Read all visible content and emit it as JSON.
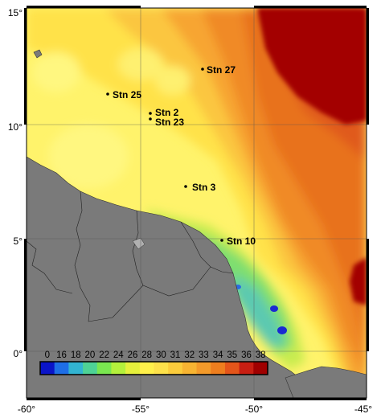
{
  "map": {
    "y_axis_labels": [
      "15°",
      "10°",
      "5°",
      "0°"
    ],
    "x_axis_labels": [
      "-60°",
      "-55°",
      "-50°",
      "-45°"
    ],
    "stations": [
      {
        "name": "Stn 27",
        "lon": -52.2,
        "lat": 12.4
      },
      {
        "name": "Stn 25",
        "lon": -56.5,
        "lat": 11.3
      },
      {
        "name": "Stn 2",
        "lon": -54.7,
        "lat": 10.5
      },
      {
        "name": "Stn 23",
        "lon": -54.7,
        "lat": 10.2
      },
      {
        "name": "Stn 3",
        "lon": -53.0,
        "lat": 7.3
      },
      {
        "name": "Stn 10",
        "lon": -51.4,
        "lat": 4.9
      }
    ],
    "colorbar": {
      "ticks": [
        "0",
        "16",
        "18",
        "20",
        "22",
        "24",
        "26",
        "28",
        "30",
        "31",
        "32",
        "33",
        "34",
        "35",
        "36",
        "38"
      ],
      "colors": [
        "#0a14c8",
        "#1e6ee6",
        "#32b4d2",
        "#4ed296",
        "#7ae650",
        "#b4f03c",
        "#e6f03c",
        "#fff04a",
        "#fde14a",
        "#fbcc3c",
        "#f7b432",
        "#f39a2a",
        "#ee7e1e",
        "#e4551a",
        "#c81e12",
        "#a00000"
      ]
    },
    "colors": {
      "land": "#7a7a7a",
      "ocean_low": "#fff36b",
      "ocean_mid": "#f7a532",
      "ocean_high": "#a30000",
      "plume": "#62c9a0"
    }
  }
}
